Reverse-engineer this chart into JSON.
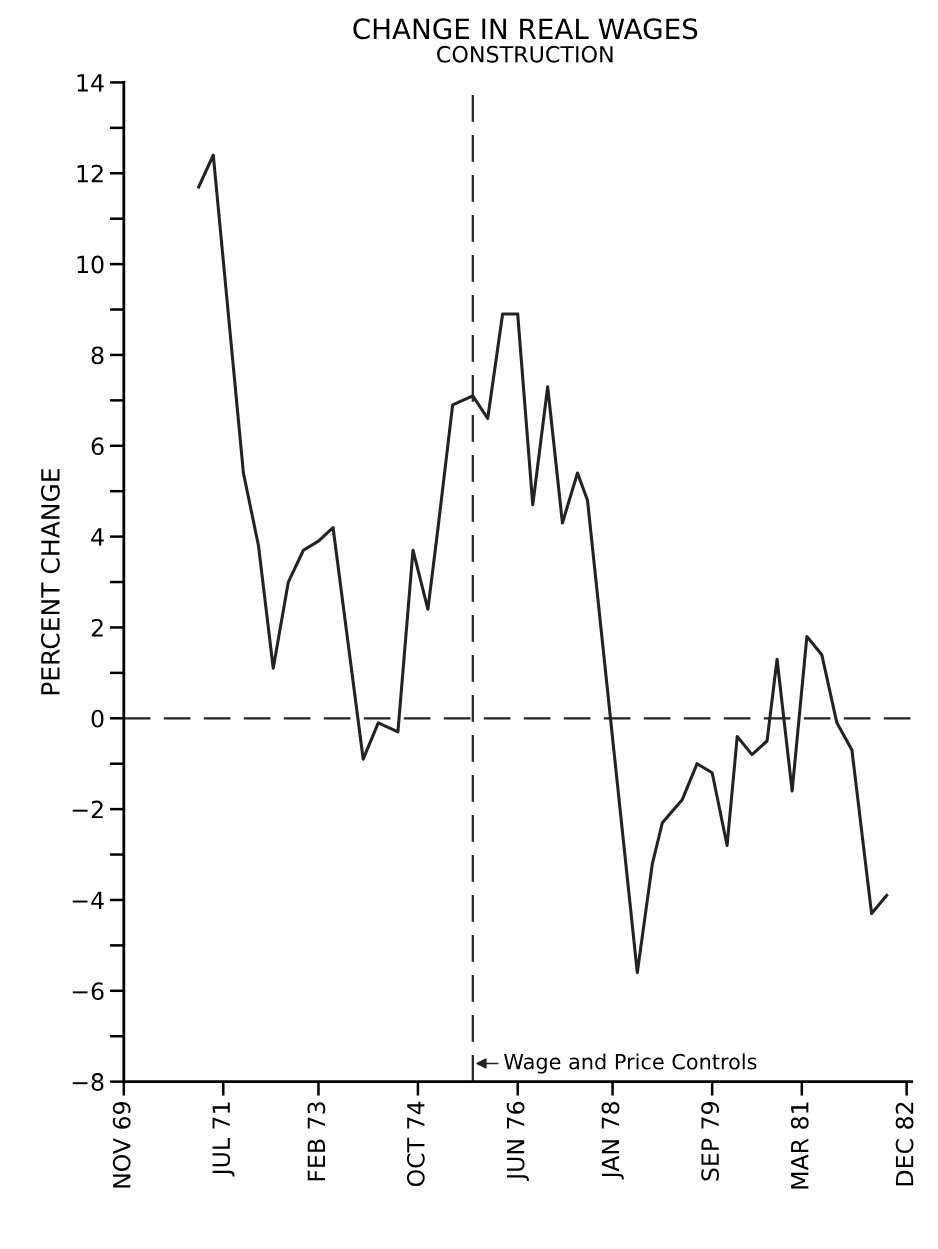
{
  "chart_data": {
    "type": "line",
    "title": "CHANGE IN REAL WAGES",
    "subtitle": "CONSTRUCTION",
    "ylabel": "PERCENT CHANGE",
    "x": [
      "1971-02",
      "1971-05",
      "1971-11",
      "1972-02",
      "1972-05",
      "1972-08",
      "1972-11",
      "1973-02",
      "1973-05",
      "1973-11",
      "1974-02",
      "1974-06",
      "1974-09",
      "1974-12",
      "1975-02",
      "1975-05",
      "1975-09",
      "1975-12",
      "1976-03",
      "1976-06",
      "1976-09",
      "1976-12",
      "1977-03",
      "1977-06",
      "1977-08",
      "1978-06",
      "1978-09",
      "1978-11",
      "1979-03",
      "1979-06",
      "1979-09",
      "1979-12",
      "1980-02",
      "1980-05",
      "1980-08",
      "1980-10",
      "1981-01",
      "1981-04",
      "1981-07",
      "1981-10",
      "1982-01",
      "1982-05",
      "1982-08"
    ],
    "series": [
      {
        "color": "#222222",
        "values": [
          11.7,
          12.4,
          5.4,
          3.8,
          1.1,
          3.0,
          3.7,
          3.9,
          4.2,
          -0.9,
          -0.1,
          -0.3,
          3.7,
          2.4,
          4.2,
          6.9,
          7.1,
          6.6,
          8.9,
          8.9,
          4.7,
          7.3,
          4.3,
          5.4,
          4.8,
          -5.6,
          -3.2,
          -2.3,
          -1.8,
          -1.0,
          -1.2,
          -2.8,
          -0.4,
          -0.8,
          -0.5,
          1.3,
          -1.6,
          1.8,
          1.4,
          -0.1,
          -0.7,
          -4.3,
          -3.9
        ]
      }
    ],
    "xlim": [
      "1969-11",
      "1983-01"
    ],
    "xticks": [
      {
        "value": "1969-11",
        "label": "NOV 69"
      },
      {
        "value": "1971-07",
        "label": "JUL 71"
      },
      {
        "value": "1973-02",
        "label": "FEB 73"
      },
      {
        "value": "1974-10",
        "label": "OCT 74"
      },
      {
        "value": "1976-06",
        "label": "JUN 76"
      },
      {
        "value": "1978-01",
        "label": "JAN 78"
      },
      {
        "value": "1979-09",
        "label": "SEP 79"
      },
      {
        "value": "1981-03",
        "label": "MAR 81"
      },
      {
        "value": "1982-12",
        "label": "DEC 82"
      }
    ],
    "ylim": [
      -8,
      14
    ],
    "yticks": [
      -8,
      {
        "value": -7,
        "label": null
      },
      -6,
      {
        "value": -5,
        "label": null
      },
      -4,
      {
        "value": -3,
        "label": null
      },
      -2,
      {
        "value": -1,
        "label": null
      },
      0,
      {
        "value": 1,
        "label": null
      },
      2,
      {
        "value": 3,
        "label": null
      },
      4,
      {
        "value": 5,
        "label": null
      },
      6,
      {
        "value": 7,
        "label": null
      },
      8,
      {
        "value": 9,
        "label": null
      },
      10,
      {
        "value": 11,
        "label": null
      },
      12,
      {
        "value": 13,
        "label": null
      },
      14
    ],
    "ref_lines": [
      {
        "axis": "y",
        "value": 0,
        "line_style": "dashed",
        "color": "#222222"
      },
      {
        "axis": "x",
        "value": "1975-09",
        "label": "Wage and Price Controls",
        "line_style": "dashed",
        "color": "#222222"
      }
    ],
    "grid": false,
    "legend": false,
    "marker": "none",
    "line_style": "solid"
  }
}
